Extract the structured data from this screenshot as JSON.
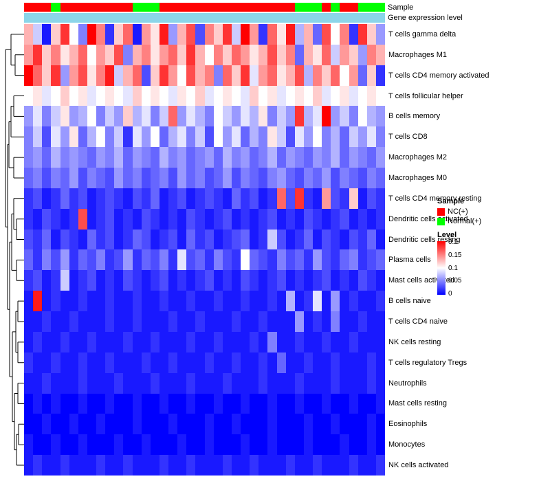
{
  "annotation": {
    "sample_label": "Sample",
    "expr_label": "Gene expression level",
    "expr_bar_color": "#8BD5E9",
    "group_colors": {
      "NC(+)": "#FF0000",
      "Normal(+)": "#00FF00"
    }
  },
  "legend": {
    "sample_title": "Sample",
    "sample_items": [
      {
        "label": "NC(+)",
        "color": "#FF0000"
      },
      {
        "label": "Normal(+)",
        "color": "#00FF00"
      }
    ],
    "level_title": "Level",
    "level_ticks": [
      "0.2",
      "0.15",
      "0.1",
      "0.05",
      "0"
    ]
  },
  "chart_data": {
    "type": "heatmap",
    "title": "",
    "rows": [
      "T cells gamma delta",
      "Macrophages M1",
      "T cells CD4 memory activated",
      "T cells follicular helper",
      "B cells memory",
      "T cells CD8",
      "Macrophages M2",
      "Macrophages M0",
      "T cells CD4 memory resting",
      "Dendritic cells activated",
      "Dendritic cells resting",
      "Plasma cells",
      "Mast cells activated",
      "B cells naive",
      "T cells CD4 naive",
      "NK cells resting",
      "T cells regulatory Tregs",
      "Neutrophils",
      "Mast cells resting",
      "Eosinophils",
      "Monocytes",
      "NK cells activated"
    ],
    "n_columns": 40,
    "column_annotation": [
      "NC(+)",
      "NC(+)",
      "NC(+)",
      "Normal(+)",
      "NC(+)",
      "NC(+)",
      "NC(+)",
      "NC(+)",
      "NC(+)",
      "NC(+)",
      "NC(+)",
      "NC(+)",
      "Normal(+)",
      "Normal(+)",
      "Normal(+)",
      "NC(+)",
      "NC(+)",
      "NC(+)",
      "NC(+)",
      "NC(+)",
      "NC(+)",
      "NC(+)",
      "NC(+)",
      "NC(+)",
      "NC(+)",
      "NC(+)",
      "NC(+)",
      "NC(+)",
      "NC(+)",
      "NC(+)",
      "Normal(+)",
      "Normal(+)",
      "Normal(+)",
      "NC(+)",
      "Normal(+)",
      "NC(+)",
      "NC(+)",
      "Normal(+)",
      "Normal(+)",
      "Normal(+)"
    ],
    "colorscale": {
      "min": 0,
      "mid": 0.1,
      "max": 0.2,
      "min_color": "#0000FF",
      "mid_color": "#FFFFFF",
      "max_color": "#FF0000"
    },
    "values": [
      [
        0.13,
        0.08,
        0.01,
        0.12,
        0.18,
        0.1,
        0.05,
        0.2,
        0.15,
        0.02,
        0.12,
        0.16,
        0.01,
        0.14,
        0.11,
        0.19,
        0.06,
        0.13,
        0.17,
        0.03,
        0.15,
        0.12,
        0.18,
        0.08,
        0.2,
        0.14,
        0.02,
        0.16,
        0.11,
        0.19,
        0.07,
        0.13,
        0.04,
        0.17,
        0.1,
        0.15,
        0.02,
        0.18,
        0.12,
        0.06
      ],
      [
        0.14,
        0.18,
        0.12,
        0.15,
        0.11,
        0.13,
        0.16,
        0.1,
        0.14,
        0.12,
        0.17,
        0.05,
        0.13,
        0.15,
        0.11,
        0.14,
        0.16,
        0.12,
        0.18,
        0.13,
        0.1,
        0.15,
        0.12,
        0.16,
        0.14,
        0.11,
        0.13,
        0.17,
        0.12,
        0.15,
        0.04,
        0.13,
        0.11,
        0.16,
        0.08,
        0.14,
        0.12,
        0.06,
        0.15,
        0.13
      ],
      [
        0.2,
        0.16,
        0.12,
        0.18,
        0.06,
        0.14,
        0.17,
        0.11,
        0.15,
        0.19,
        0.08,
        0.13,
        0.16,
        0.03,
        0.12,
        0.18,
        0.14,
        0.1,
        0.17,
        0.13,
        0.15,
        0.05,
        0.16,
        0.12,
        0.18,
        0.09,
        0.14,
        0.16,
        0.11,
        0.13,
        0.17,
        0.07,
        0.15,
        0.12,
        0.16,
        0.1,
        0.14,
        0.04,
        0.12,
        0.02
      ],
      [
        0.1,
        0.11,
        0.09,
        0.1,
        0.12,
        0.1,
        0.11,
        0.09,
        0.1,
        0.11,
        0.1,
        0.09,
        0.12,
        0.1,
        0.11,
        0.1,
        0.09,
        0.11,
        0.1,
        0.12,
        0.09,
        0.1,
        0.11,
        0.1,
        0.09,
        0.12,
        0.1,
        0.11,
        0.09,
        0.1,
        0.11,
        0.1,
        0.12,
        0.09,
        0.1,
        0.11,
        0.09,
        0.1,
        0.11,
        0.1
      ],
      [
        0.06,
        0.09,
        0.05,
        0.08,
        0.11,
        0.06,
        0.07,
        0.1,
        0.05,
        0.08,
        0.06,
        0.12,
        0.07,
        0.09,
        0.05,
        0.08,
        0.16,
        0.06,
        0.09,
        0.07,
        0.05,
        0.1,
        0.08,
        0.06,
        0.09,
        0.07,
        0.11,
        0.05,
        0.08,
        0.06,
        0.18,
        0.07,
        0.09,
        0.2,
        0.06,
        0.08,
        0.05,
        0.1,
        0.07,
        0.06
      ],
      [
        0.05,
        0.08,
        0.03,
        0.09,
        0.06,
        0.11,
        0.04,
        0.07,
        0.1,
        0.05,
        0.08,
        0.02,
        0.09,
        0.06,
        0.1,
        0.04,
        0.07,
        0.09,
        0.05,
        0.08,
        0.03,
        0.1,
        0.06,
        0.09,
        0.04,
        0.07,
        0.05,
        0.11,
        0.08,
        0.03,
        0.09,
        0.06,
        0.1,
        0.05,
        0.07,
        0.04,
        0.08,
        0.06,
        0.09,
        0.05
      ],
      [
        0.05,
        0.06,
        0.04,
        0.07,
        0.05,
        0.06,
        0.05,
        0.04,
        0.06,
        0.05,
        0.07,
        0.04,
        0.06,
        0.05,
        0.04,
        0.07,
        0.05,
        0.06,
        0.04,
        0.05,
        0.06,
        0.04,
        0.07,
        0.05,
        0.06,
        0.04,
        0.05,
        0.07,
        0.04,
        0.06,
        0.05,
        0.04,
        0.06,
        0.05,
        0.07,
        0.04,
        0.06,
        0.05,
        0.04,
        0.06
      ],
      [
        0.04,
        0.05,
        0.03,
        0.05,
        0.04,
        0.06,
        0.03,
        0.05,
        0.04,
        0.03,
        0.06,
        0.04,
        0.05,
        0.03,
        0.04,
        0.05,
        0.03,
        0.06,
        0.04,
        0.05,
        0.03,
        0.04,
        0.06,
        0.03,
        0.05,
        0.04,
        0.03,
        0.05,
        0.06,
        0.04,
        0.03,
        0.05,
        0.04,
        0.06,
        0.03,
        0.05,
        0.04,
        0.03,
        0.05,
        0.04
      ],
      [
        0.02,
        0.03,
        0.01,
        0.02,
        0.04,
        0.02,
        0.03,
        0.01,
        0.02,
        0.03,
        0.02,
        0.01,
        0.03,
        0.02,
        0.04,
        0.01,
        0.02,
        0.03,
        0.01,
        0.02,
        0.03,
        0.02,
        0.01,
        0.04,
        0.02,
        0.03,
        0.01,
        0.02,
        0.16,
        0.03,
        0.18,
        0.02,
        0.01,
        0.14,
        0.03,
        0.02,
        0.12,
        0.01,
        0.03,
        0.02
      ],
      [
        0.02,
        0.01,
        0.03,
        0.02,
        0.01,
        0.02,
        0.17,
        0.01,
        0.02,
        0.03,
        0.01,
        0.02,
        0.01,
        0.03,
        0.02,
        0.01,
        0.02,
        0.01,
        0.03,
        0.02,
        0.01,
        0.02,
        0.03,
        0.01,
        0.02,
        0.01,
        0.02,
        0.03,
        0.01,
        0.02,
        0.01,
        0.03,
        0.02,
        0.01,
        0.02,
        0.03,
        0.01,
        0.02,
        0.01,
        0.02
      ],
      [
        0.03,
        0.02,
        0.04,
        0.01,
        0.03,
        0.02,
        0.01,
        0.04,
        0.02,
        0.03,
        0.01,
        0.02,
        0.04,
        0.03,
        0.01,
        0.02,
        0.03,
        0.01,
        0.04,
        0.02,
        0.03,
        0.01,
        0.02,
        0.03,
        0.04,
        0.01,
        0.02,
        0.08,
        0.03,
        0.01,
        0.02,
        0.04,
        0.01,
        0.03,
        0.02,
        0.01,
        0.03,
        0.02,
        0.04,
        0.01
      ],
      [
        0.04,
        0.02,
        0.05,
        0.03,
        0.06,
        0.02,
        0.04,
        0.03,
        0.05,
        0.02,
        0.03,
        0.06,
        0.02,
        0.04,
        0.03,
        0.05,
        0.02,
        0.09,
        0.03,
        0.04,
        0.02,
        0.05,
        0.03,
        0.02,
        0.1,
        0.04,
        0.03,
        0.02,
        0.05,
        0.03,
        0.04,
        0.02,
        0.06,
        0.03,
        0.02,
        0.04,
        0.05,
        0.02,
        0.03,
        0.04
      ],
      [
        0.02,
        0.03,
        0.01,
        0.02,
        0.08,
        0.01,
        0.02,
        0.03,
        0.01,
        0.02,
        0.01,
        0.03,
        0.02,
        0.01,
        0.02,
        0.03,
        0.01,
        0.02,
        0.01,
        0.02,
        0.03,
        0.01,
        0.02,
        0.01,
        0.03,
        0.02,
        0.01,
        0.02,
        0.03,
        0.01,
        0.02,
        0.01,
        0.02,
        0.03,
        0.01,
        0.02,
        0.01,
        0.03,
        0.02,
        0.01
      ],
      [
        0.01,
        0.19,
        0.01,
        0.02,
        0.01,
        0.01,
        0.02,
        0.01,
        0.01,
        0.02,
        0.01,
        0.01,
        0.02,
        0.01,
        0.01,
        0.02,
        0.01,
        0.01,
        0.02,
        0.01,
        0.01,
        0.02,
        0.01,
        0.01,
        0.02,
        0.01,
        0.01,
        0.02,
        0.01,
        0.07,
        0.01,
        0.02,
        0.09,
        0.01,
        0.06,
        0.01,
        0.02,
        0.01,
        0.01,
        0.02
      ],
      [
        0.01,
        0.01,
        0.02,
        0.01,
        0.01,
        0.02,
        0.01,
        0.01,
        0.01,
        0.02,
        0.01,
        0.01,
        0.02,
        0.01,
        0.01,
        0.01,
        0.02,
        0.01,
        0.01,
        0.02,
        0.01,
        0.01,
        0.01,
        0.02,
        0.01,
        0.01,
        0.02,
        0.01,
        0.01,
        0.01,
        0.06,
        0.01,
        0.02,
        0.01,
        0.05,
        0.01,
        0.01,
        0.02,
        0.01,
        0.01
      ],
      [
        0.01,
        0.02,
        0.01,
        0.01,
        0.02,
        0.01,
        0.01,
        0.02,
        0.01,
        0.01,
        0.01,
        0.02,
        0.01,
        0.01,
        0.02,
        0.01,
        0.01,
        0.01,
        0.02,
        0.01,
        0.01,
        0.02,
        0.01,
        0.01,
        0.01,
        0.02,
        0.01,
        0.05,
        0.01,
        0.01,
        0.02,
        0.01,
        0.01,
        0.02,
        0.01,
        0.01,
        0.02,
        0.01,
        0.01,
        0.01
      ],
      [
        0.02,
        0.01,
        0.01,
        0.02,
        0.01,
        0.01,
        0.02,
        0.01,
        0.01,
        0.02,
        0.01,
        0.01,
        0.01,
        0.02,
        0.01,
        0.01,
        0.02,
        0.01,
        0.01,
        0.01,
        0.02,
        0.01,
        0.01,
        0.02,
        0.01,
        0.01,
        0.02,
        0.01,
        0.04,
        0.01,
        0.01,
        0.02,
        0.01,
        0.01,
        0.02,
        0.01,
        0.01,
        0.01,
        0.02,
        0.01
      ],
      [
        0.01,
        0.01,
        0.02,
        0.01,
        0.01,
        0.01,
        0.02,
        0.01,
        0.01,
        0.01,
        0.02,
        0.01,
        0.01,
        0.01,
        0.02,
        0.01,
        0.01,
        0.01,
        0.02,
        0.01,
        0.01,
        0.01,
        0.02,
        0.01,
        0.01,
        0.01,
        0.02,
        0.01,
        0.01,
        0.01,
        0.02,
        0.01,
        0.01,
        0.01,
        0.02,
        0.01,
        0.01,
        0.01,
        0.02,
        0.01
      ],
      [
        0,
        0.01,
        0,
        0.01,
        0,
        0,
        0.01,
        0,
        0,
        0.01,
        0,
        0,
        0.01,
        0,
        0,
        0.01,
        0,
        0,
        0.01,
        0,
        0,
        0.01,
        0,
        0,
        0.01,
        0,
        0,
        0.01,
        0,
        0,
        0.01,
        0,
        0,
        0.01,
        0,
        0,
        0.01,
        0,
        0,
        0.01
      ],
      [
        0,
        0,
        0.01,
        0,
        0,
        0.01,
        0,
        0,
        0.01,
        0,
        0,
        0,
        0.01,
        0,
        0,
        0,
        0.01,
        0,
        0,
        0,
        0.01,
        0,
        0,
        0.01,
        0,
        0,
        0,
        0.01,
        0,
        0,
        0,
        0.01,
        0,
        0,
        0.01,
        0,
        0,
        0,
        0.01,
        0
      ],
      [
        0.01,
        0,
        0,
        0.01,
        0,
        0,
        0.01,
        0,
        0,
        0,
        0.01,
        0,
        0,
        0.01,
        0,
        0,
        0,
        0.01,
        0,
        0,
        0.01,
        0,
        0,
        0,
        0.01,
        0,
        0,
        0.01,
        0,
        0,
        0,
        0.01,
        0,
        0,
        0,
        0.01,
        0,
        0,
        0.01,
        0
      ],
      [
        0.01,
        0.02,
        0.01,
        0.01,
        0.02,
        0.01,
        0.01,
        0.01,
        0.02,
        0.01,
        0.01,
        0.02,
        0.01,
        0.01,
        0.01,
        0.02,
        0.01,
        0.01,
        0.02,
        0.01,
        0.01,
        0.01,
        0.02,
        0.01,
        0.01,
        0.02,
        0.01,
        0.01,
        0.01,
        0.02,
        0.01,
        0.01,
        0.02,
        0.01,
        0.01,
        0.01,
        0.02,
        0.01,
        0.01,
        0.02
      ]
    ]
  }
}
